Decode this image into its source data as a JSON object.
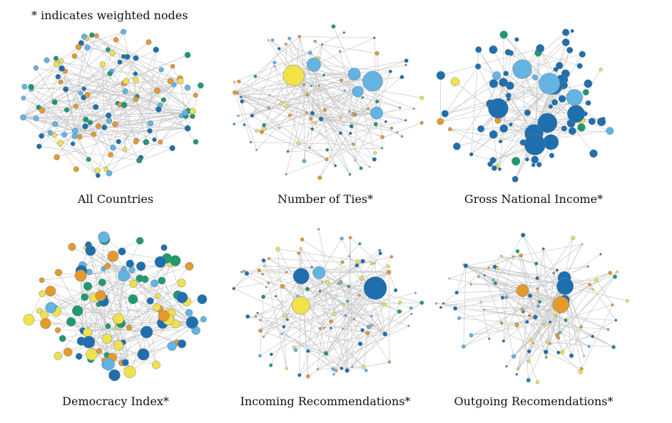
{
  "note": "* indicates weighted nodes",
  "panels": [
    {
      "caption": "All Countries"
    },
    {
      "caption": "Number of Ties*"
    },
    {
      "caption": "Gross National Income*"
    },
    {
      "caption": "Democracy Index*"
    },
    {
      "caption": "Incoming Recommendations*"
    },
    {
      "caption": "Outgoing Recomendations*"
    }
  ],
  "colors": {
    "dark_blue": "#1f6fae",
    "light_blue": "#63b3e3",
    "green": "#1f9a6e",
    "orange": "#e59a2e",
    "yellow": "#f2e24a",
    "edge": "#c8c8c8"
  }
}
